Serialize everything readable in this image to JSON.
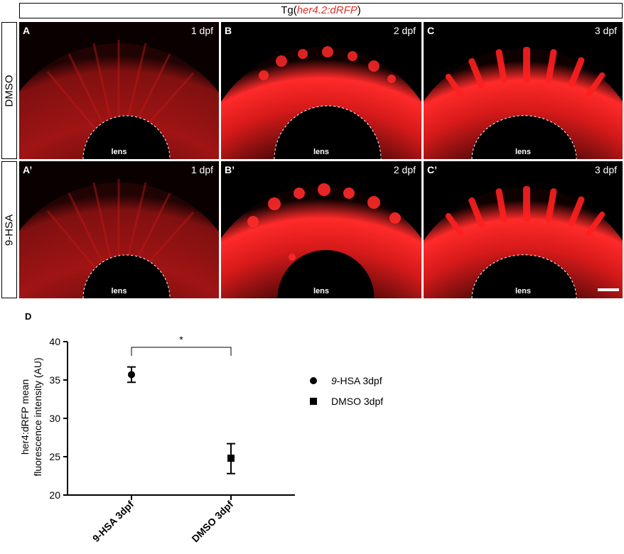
{
  "figure": {
    "title_prefix": "Tg(",
    "title_gene": "her4.2:dRFP",
    "title_suffix": ")",
    "row_labels": [
      "DMSO",
      "9-HSA"
    ],
    "panel_text": [
      "lens"
    ],
    "panels": [
      {
        "label": "A",
        "day": "1 dpf"
      },
      {
        "label": "B",
        "day": "2 dpf"
      },
      {
        "label": "C",
        "day": "3 dpf"
      },
      {
        "label": "A’",
        "day": "1 dpf"
      },
      {
        "label": "B’",
        "day": "2 dpf"
      },
      {
        "label": "C’",
        "day": "3 dpf"
      }
    ],
    "colors": {
      "fluorescence": "#ff1a1a",
      "background": "#000000",
      "title_highlight": "#e0302a"
    }
  },
  "chart_data": {
    "type": "scatter",
    "panel_label": "D",
    "ylabel_line1": "her4:dRFP mean",
    "ylabel_line2": "fluorescence intensity (AU)",
    "categories": [
      "9-HSA 3dpf",
      "DMSO 3dpf"
    ],
    "ylim": [
      20,
      40
    ],
    "yticks": [
      "20",
      "25",
      "30",
      "35",
      "40"
    ],
    "series": [
      {
        "name": "9-HSA 3dpf",
        "legend_prefix": "9",
        "legend_rest": "-HSA 3dpf",
        "marker": "circle",
        "x": "9-HSA 3dpf",
        "mean": 35.7,
        "err_low": 34.7,
        "err_high": 36.7
      },
      {
        "name": "DMSO 3dpf",
        "marker": "square",
        "x": "DMSO 3dpf",
        "mean": 24.8,
        "err_low": 22.8,
        "err_high": 26.7
      }
    ],
    "significance": "*",
    "legend_position": "right",
    "grid": false
  }
}
